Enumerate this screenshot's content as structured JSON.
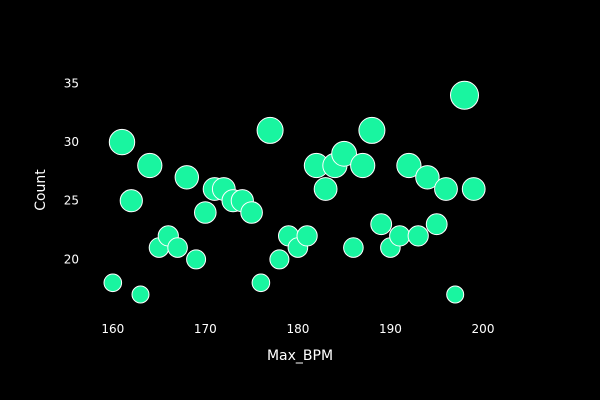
{
  "chart_data": {
    "type": "scatter",
    "xlabel": "Max_BPM",
    "ylabel": "Count",
    "xlim": [
      157,
      204
    ],
    "ylim": [
      15,
      37
    ],
    "x_ticks": [
      160,
      170,
      180,
      190,
      200
    ],
    "y_ticks": [
      20,
      25,
      30,
      35
    ],
    "grid": false,
    "legend": "none",
    "background": "#000000",
    "marker_color": "#19f5a0",
    "marker_outline": "#ffffff",
    "points": [
      {
        "x": 160,
        "y": 18
      },
      {
        "x": 161,
        "y": 30
      },
      {
        "x": 162,
        "y": 25
      },
      {
        "x": 163,
        "y": 17
      },
      {
        "x": 164,
        "y": 28
      },
      {
        "x": 165,
        "y": 21
      },
      {
        "x": 166,
        "y": 22
      },
      {
        "x": 167,
        "y": 21
      },
      {
        "x": 168,
        "y": 27
      },
      {
        "x": 169,
        "y": 20
      },
      {
        "x": 170,
        "y": 24
      },
      {
        "x": 171,
        "y": 26
      },
      {
        "x": 172,
        "y": 26
      },
      {
        "x": 173,
        "y": 25
      },
      {
        "x": 174,
        "y": 25
      },
      {
        "x": 175,
        "y": 24
      },
      {
        "x": 176,
        "y": 18
      },
      {
        "x": 177,
        "y": 31
      },
      {
        "x": 178,
        "y": 20
      },
      {
        "x": 179,
        "y": 22
      },
      {
        "x": 180,
        "y": 21
      },
      {
        "x": 181,
        "y": 22
      },
      {
        "x": 182,
        "y": 28
      },
      {
        "x": 183,
        "y": 26
      },
      {
        "x": 184,
        "y": 28
      },
      {
        "x": 185,
        "y": 29
      },
      {
        "x": 186,
        "y": 21
      },
      {
        "x": 187,
        "y": 28
      },
      {
        "x": 188,
        "y": 31
      },
      {
        "x": 189,
        "y": 23
      },
      {
        "x": 190,
        "y": 21
      },
      {
        "x": 191,
        "y": 22
      },
      {
        "x": 192,
        "y": 28
      },
      {
        "x": 193,
        "y": 22
      },
      {
        "x": 194,
        "y": 27
      },
      {
        "x": 195,
        "y": 23
      },
      {
        "x": 196,
        "y": 26
      },
      {
        "x": 197,
        "y": 17
      },
      {
        "x": 198,
        "y": 34
      },
      {
        "x": 199,
        "y": 26
      }
    ]
  }
}
